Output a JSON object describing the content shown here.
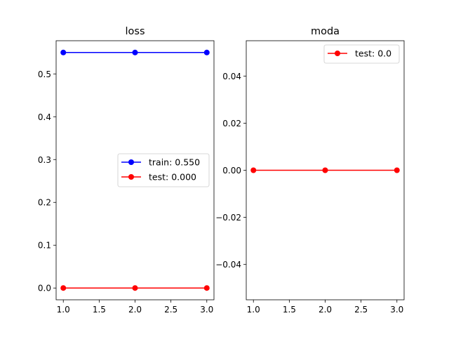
{
  "chart_data": [
    {
      "type": "line",
      "title": "loss",
      "xlabel": "",
      "ylabel": "",
      "xlim": [
        0.9,
        3.1
      ],
      "ylim": [
        -0.0275,
        0.5775
      ],
      "xticks": [
        1.0,
        1.5,
        2.0,
        2.5,
        3.0
      ],
      "xtick_labels": [
        "1.0",
        "1.5",
        "2.0",
        "2.5",
        "3.0"
      ],
      "yticks": [
        0.0,
        0.1,
        0.2,
        0.3,
        0.4,
        0.5
      ],
      "ytick_labels": [
        "0.0",
        "0.1",
        "0.2",
        "0.3",
        "0.4",
        "0.5"
      ],
      "grid": false,
      "legend_position": "center-right",
      "series": [
        {
          "name": "train: 0.550",
          "color": "#0000ff",
          "marker": "circle",
          "x": [
            1,
            2,
            3
          ],
          "y": [
            0.55,
            0.55,
            0.55
          ]
        },
        {
          "name": "test: 0.000",
          "color": "#ff0000",
          "marker": "circle",
          "x": [
            1,
            2,
            3
          ],
          "y": [
            0.0,
            0.0,
            0.0
          ]
        }
      ]
    },
    {
      "type": "line",
      "title": "moda",
      "xlabel": "",
      "ylabel": "",
      "xlim": [
        0.9,
        3.1
      ],
      "ylim": [
        -0.055,
        0.055
      ],
      "xticks": [
        1.0,
        1.5,
        2.0,
        2.5,
        3.0
      ],
      "xtick_labels": [
        "1.0",
        "1.5",
        "2.0",
        "2.5",
        "3.0"
      ],
      "yticks": [
        -0.04,
        -0.02,
        0.0,
        0.02,
        0.04
      ],
      "ytick_labels": [
        "−0.04",
        "−0.02",
        "0.00",
        "0.02",
        "0.04"
      ],
      "grid": false,
      "legend_position": "top-right",
      "series": [
        {
          "name": "test: 0.0",
          "color": "#ff0000",
          "marker": "circle",
          "x": [
            1,
            2,
            3
          ],
          "y": [
            0.0,
            0.0,
            0.0
          ]
        }
      ]
    }
  ]
}
